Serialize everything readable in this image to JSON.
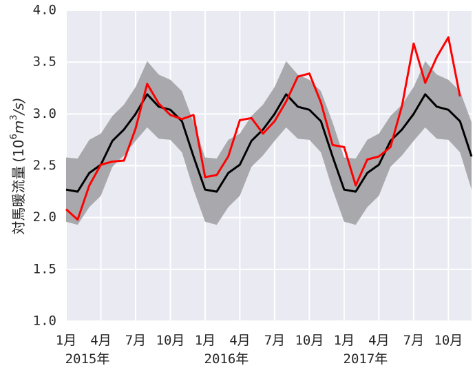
{
  "chart_data": {
    "type": "line",
    "title": "",
    "ylabel_main": "対馬暖流量",
    "ylabel_unit_open": "(10",
    "ylabel_unit_exp": "6",
    "ylabel_unit_mid": "m",
    "ylabel_unit_exp2": "3",
    "ylabel_unit_close": "/s)",
    "xlabel": "",
    "ylim": [
      1.0,
      4.0
    ],
    "y_ticks": [
      {
        "value": 1.0,
        "label": "1.0"
      },
      {
        "value": 1.5,
        "label": "1.5"
      },
      {
        "value": 2.0,
        "label": "2.0"
      },
      {
        "value": 2.5,
        "label": "2.5"
      },
      {
        "value": 3.0,
        "label": "3.0"
      },
      {
        "value": 3.5,
        "label": "3.5"
      },
      {
        "value": 4.0,
        "label": "4.0"
      }
    ],
    "x_range": [
      "2015-01",
      "2017-12"
    ],
    "x_ticks": [
      {
        "x": "2015-01",
        "label": "1月",
        "year_label": "2015年"
      },
      {
        "x": "2015-04",
        "label": "4月",
        "year_label": ""
      },
      {
        "x": "2015-07",
        "label": "7月",
        "year_label": ""
      },
      {
        "x": "2015-10",
        "label": "10月",
        "year_label": ""
      },
      {
        "x": "2016-01",
        "label": "1月",
        "year_label": "2016年"
      },
      {
        "x": "2016-04",
        "label": "4月",
        "year_label": ""
      },
      {
        "x": "2016-07",
        "label": "7月",
        "year_label": ""
      },
      {
        "x": "2016-10",
        "label": "10月",
        "year_label": ""
      },
      {
        "x": "2017-01",
        "label": "1月",
        "year_label": "2017年"
      },
      {
        "x": "2017-04",
        "label": "4月",
        "year_label": ""
      },
      {
        "x": "2017-07",
        "label": "7月",
        "year_label": ""
      },
      {
        "x": "2017-10",
        "label": "10月",
        "year_label": ""
      }
    ],
    "grid": true,
    "colors": {
      "background": "#eaeaf2",
      "grid": "#ffffff",
      "band": "#a9a9ad",
      "climatology": "#000000",
      "observed": "#ff0000"
    },
    "climatology_monthly": [
      2.27,
      2.25,
      2.43,
      2.51,
      2.74,
      2.85,
      3.0,
      3.19,
      3.07,
      3.04,
      2.93,
      2.59
    ],
    "band_upper_monthly": [
      2.58,
      2.57,
      2.75,
      2.81,
      2.98,
      3.09,
      3.26,
      3.51,
      3.38,
      3.33,
      3.22,
      2.92
    ],
    "band_lower_monthly": [
      1.96,
      1.93,
      2.1,
      2.21,
      2.49,
      2.6,
      2.74,
      2.87,
      2.76,
      2.75,
      2.63,
      2.27
    ],
    "band_years": 3,
    "observed": [
      {
        "x": "2015-01",
        "y": 2.08
      },
      {
        "x": "2015-02",
        "y": 1.98
      },
      {
        "x": "2015-03",
        "y": 2.31
      },
      {
        "x": "2015-04",
        "y": 2.51
      },
      {
        "x": "2015-05",
        "y": 2.54
      },
      {
        "x": "2015-06",
        "y": 2.55
      },
      {
        "x": "2015-07",
        "y": 2.86
      },
      {
        "x": "2015-08",
        "y": 3.29
      },
      {
        "x": "2015-09",
        "y": 3.1
      },
      {
        "x": "2015-10",
        "y": 2.99
      },
      {
        "x": "2015-11",
        "y": 2.95
      },
      {
        "x": "2015-12",
        "y": 2.99
      },
      {
        "x": "2016-01",
        "y": 2.39
      },
      {
        "x": "2016-02",
        "y": 2.41
      },
      {
        "x": "2016-03",
        "y": 2.59
      },
      {
        "x": "2016-04",
        "y": 2.94
      },
      {
        "x": "2016-05",
        "y": 2.96
      },
      {
        "x": "2016-06",
        "y": 2.81
      },
      {
        "x": "2016-07",
        "y": 2.93
      },
      {
        "x": "2016-08",
        "y": 3.12
      },
      {
        "x": "2016-09",
        "y": 3.36
      },
      {
        "x": "2016-10",
        "y": 3.39
      },
      {
        "x": "2016-11",
        "y": 3.11
      },
      {
        "x": "2016-12",
        "y": 2.7
      },
      {
        "x": "2017-01",
        "y": 2.68
      },
      {
        "x": "2017-02",
        "y": 2.31
      },
      {
        "x": "2017-03",
        "y": 2.56
      },
      {
        "x": "2017-04",
        "y": 2.59
      },
      {
        "x": "2017-05",
        "y": 2.68
      },
      {
        "x": "2017-06",
        "y": 3.08
      },
      {
        "x": "2017-07",
        "y": 3.68
      },
      {
        "x": "2017-08",
        "y": 3.3
      },
      {
        "x": "2017-09",
        "y": 3.55
      },
      {
        "x": "2017-10",
        "y": 3.74
      },
      {
        "x": "2017-11",
        "y": 3.17
      }
    ]
  }
}
